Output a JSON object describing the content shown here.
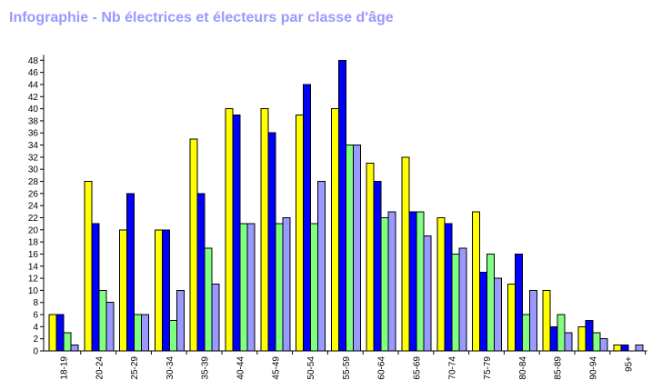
{
  "chart_data": {
    "type": "bar",
    "title": "Infographie - Nb électrices et électeurs par classe d'âge",
    "xlabel": "",
    "ylabel": "",
    "ylim": [
      0,
      50
    ],
    "yticks": [
      0,
      2,
      4,
      6,
      8,
      10,
      12,
      14,
      16,
      18,
      20,
      22,
      24,
      26,
      28,
      30,
      32,
      34,
      36,
      38,
      40,
      42,
      44,
      46,
      48
    ],
    "grid": false,
    "legend": "none",
    "categories": [
      "18-19",
      "20-24",
      "25-29",
      "30-34",
      "35-39",
      "40-44",
      "45-49",
      "50-54",
      "55-59",
      "60-64",
      "65-69",
      "70-74",
      "75-79",
      "80-84",
      "85-89",
      "90-94",
      "95+"
    ],
    "series": [
      {
        "color": "#ffff00",
        "values": [
          6,
          28,
          20,
          20,
          35,
          40,
          40,
          39,
          40,
          31,
          32,
          22,
          23,
          11,
          10,
          4,
          1
        ]
      },
      {
        "color": "#0000ff",
        "values": [
          6,
          21,
          26,
          20,
          26,
          39,
          36,
          44,
          48,
          28,
          23,
          21,
          13,
          16,
          4,
          5,
          1
        ]
      },
      {
        "color": "#80ff80",
        "values": [
          3,
          10,
          6,
          5,
          17,
          21,
          21,
          21,
          34,
          22,
          23,
          16,
          16,
          6,
          6,
          3,
          0
        ]
      },
      {
        "color": "#9999ff",
        "values": [
          1,
          8,
          6,
          10,
          11,
          21,
          22,
          28,
          34,
          23,
          19,
          17,
          12,
          10,
          3,
          2,
          1
        ]
      }
    ]
  }
}
